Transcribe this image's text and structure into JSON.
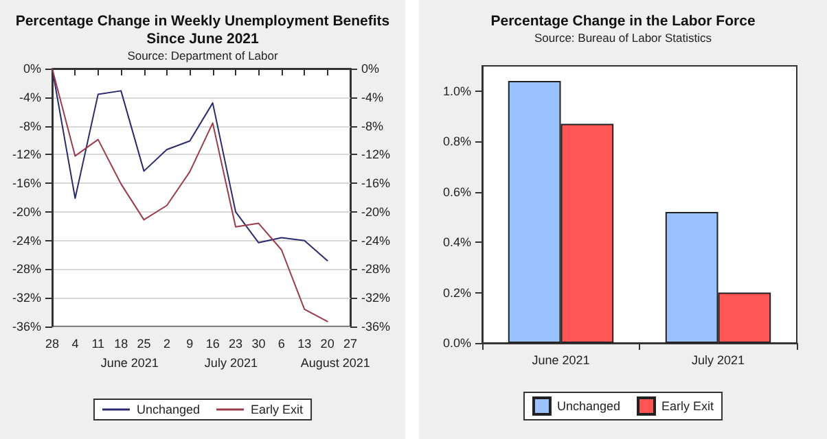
{
  "chart_data": [
    {
      "type": "line",
      "title": "Percentage Change in Weekly Unemployment Benefits\nSince June 2021",
      "subtitle": "Source: Department of Labor",
      "categories": [
        "28",
        "4",
        "11",
        "18",
        "25",
        "2",
        "9",
        "16",
        "23",
        "30",
        "6",
        "13",
        "20",
        "27"
      ],
      "series": [
        {
          "name": "Unchanged",
          "color": "#2b2a6e",
          "values": [
            0,
            -18.1,
            -3.6,
            -3.1,
            -14.3,
            -11.3,
            -10.1,
            -4.8,
            -20.0,
            -24.3,
            -23.6,
            -24.0,
            -26.8,
            null
          ]
        },
        {
          "name": "Early Exit",
          "color": "#9b3a4a",
          "values": [
            0,
            -12.2,
            -9.9,
            -16.1,
            -21.1,
            -19.1,
            -14.4,
            -7.6,
            -22.1,
            -21.6,
            -25.3,
            -33.6,
            -35.3,
            null
          ]
        }
      ],
      "ylim": [
        -36,
        0
      ],
      "yticks": [
        {
          "value": 0,
          "label": "0%"
        },
        {
          "value": -4,
          "label": "-4%"
        },
        {
          "value": -8,
          "label": "-8%"
        },
        {
          "value": -12,
          "label": "-12%"
        },
        {
          "value": -16,
          "label": "-16%"
        },
        {
          "value": -20,
          "label": "-20%"
        },
        {
          "value": -24,
          "label": "-24%"
        },
        {
          "value": -28,
          "label": "-28%"
        },
        {
          "value": -32,
          "label": "-32%"
        },
        {
          "value": -36,
          "label": "-36%"
        }
      ],
      "y2lim": [
        -36,
        0
      ],
      "y2ticks": [
        {
          "value": 0,
          "label": "0%"
        },
        {
          "value": -4,
          "label": "-4%"
        },
        {
          "value": -8,
          "label": "-8%"
        },
        {
          "value": -12,
          "label": "-12%"
        },
        {
          "value": -16,
          "label": "-16%"
        },
        {
          "value": -20,
          "label": "-20%"
        },
        {
          "value": -24,
          "label": "-24%"
        },
        {
          "value": -28,
          "label": "-28%"
        },
        {
          "value": -32,
          "label": "-32%"
        },
        {
          "value": -36,
          "label": "-36%"
        }
      ],
      "annotations": [
        "June 2021",
        "July 2021",
        "August 2021"
      ],
      "grid": "y",
      "legend": "bottom",
      "marker": "none",
      "line_style": "solid"
    },
    {
      "type": "bar",
      "title": "Percentage Change in the Labor Force",
      "subtitle": "Source: Bureau of Labor Statistics",
      "categories": [
        "June 2021",
        "July 2021"
      ],
      "series": [
        {
          "name": "Unchanged",
          "color": "#99c2ff",
          "values": [
            1.04,
            0.52
          ]
        },
        {
          "name": "Early Exit",
          "color": "#ff5555",
          "values": [
            0.87,
            0.2
          ]
        }
      ],
      "ylim": [
        0,
        1.1
      ],
      "yticks": [
        {
          "value": 0,
          "label": "0.0%"
        },
        {
          "value": 0.2,
          "label": "0.2%"
        },
        {
          "value": 0.4,
          "label": "0.4%"
        },
        {
          "value": 0.6,
          "label": "0.6%"
        },
        {
          "value": 0.8,
          "label": "0.8%"
        },
        {
          "value": 1.0,
          "label": "1.0%"
        }
      ],
      "legend": "bottom"
    }
  ]
}
